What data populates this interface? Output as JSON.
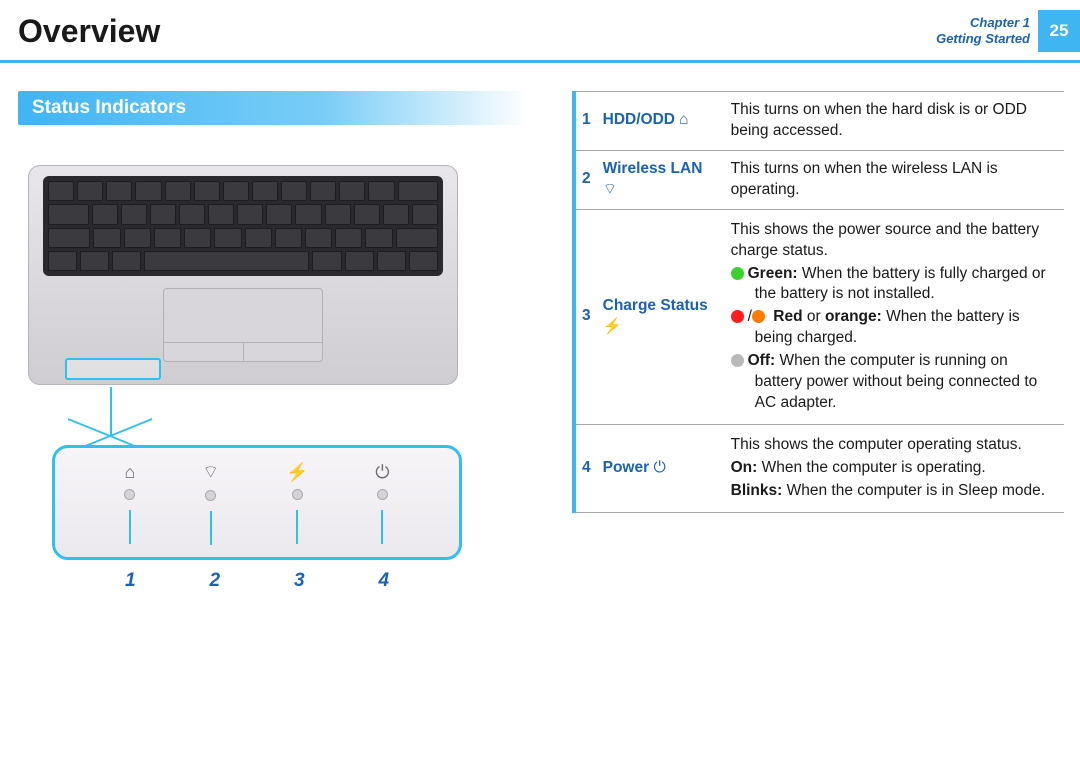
{
  "header": {
    "title": "Overview",
    "chapter_line1": "Chapter 1",
    "chapter_line2": "Getting Started",
    "page_number": "25"
  },
  "section_heading": "Status Indicators",
  "diagram_numbers": [
    "1",
    "2",
    "3",
    "4"
  ],
  "led_icons": [
    "⌂",
    "⌔",
    "⚡",
    "⏻"
  ],
  "rows": [
    {
      "idx": "1",
      "label": "HDD/ODD",
      "symbol": "⌂",
      "desc_plain": "This turns on when the hard disk is or ODD being accessed."
    },
    {
      "idx": "2",
      "label": "Wireless LAN",
      "symbol": "⌔",
      "desc_plain": "This turns on when the wireless LAN is operating."
    },
    {
      "idx": "3",
      "label": "Charge Status",
      "symbol": "⚡",
      "intro": "This shows the power source and the battery charge status.",
      "bullets": [
        {
          "colors": [
            "green"
          ],
          "bold": "Green:",
          "text": " When the battery is fully charged or the battery is not installed."
        },
        {
          "colors": [
            "red",
            "orange"
          ],
          "bold": "Red",
          "mid": " or ",
          "bold2": "orange:",
          "text": " When the battery is being charged."
        },
        {
          "colors": [
            "grey"
          ],
          "bold": "Off:",
          "text": " When the computer is running on battery power without being connected to AC adapter."
        }
      ]
    },
    {
      "idx": "4",
      "label": "Power",
      "symbol": "⏻",
      "intro": "This shows the computer operating status.",
      "lines": [
        {
          "bold": "On:",
          "text": " When the computer is operating."
        },
        {
          "bold": "Blinks:",
          "text": " When the computer is in Sleep mode."
        }
      ]
    }
  ],
  "colors": {
    "accent": "#3fb5f2",
    "link": "#1a63b4",
    "green": "#3bd12e",
    "red": "#ff1e1e",
    "orange": "#ff7a00",
    "grey": "#b9b8bb"
  }
}
